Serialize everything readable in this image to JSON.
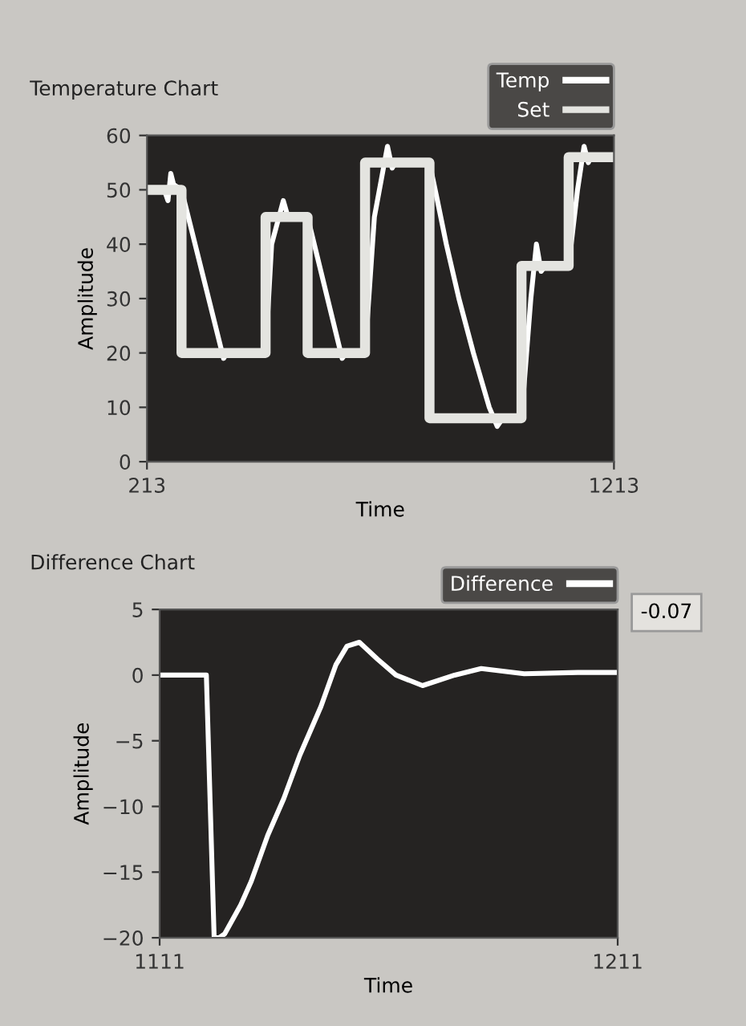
{
  "chart_data": [
    {
      "type": "line",
      "title": "Temperature Chart",
      "xlabel": "Time",
      "ylabel": "Amplitude",
      "xlim": [
        213,
        1213
      ],
      "ylim": [
        0,
        60
      ],
      "xticks": [
        213,
        1213
      ],
      "yticks": [
        0,
        10,
        20,
        30,
        40,
        50,
        60
      ],
      "grid": false,
      "legend": "top right",
      "series": [
        {
          "name": "Temp",
          "color": "#ffffff",
          "x": [
            213,
            250,
            258,
            264,
            270,
            287,
            377,
            385,
            467,
            480,
            505,
            515,
            522,
            557,
            631,
            640,
            680,
            700,
            728,
            738,
            745,
            818,
            835,
            854,
            881,
            912,
            946,
            963,
            975,
            1015,
            1035,
            1047,
            1057,
            1066,
            1116,
            1135,
            1149,
            1158,
            1164,
            1213
          ],
          "values": [
            50,
            50,
            48,
            53,
            51,
            50,
            19,
            20,
            20,
            40,
            48,
            45,
            45,
            45,
            19,
            20,
            20,
            45,
            58,
            54,
            55,
            55,
            48,
            40,
            30,
            20,
            10,
            6.5,
            8,
            8,
            30,
            40,
            35,
            36,
            36,
            50,
            58,
            55,
            56,
            56
          ]
        },
        {
          "name": "Set",
          "color": "#e4e4e0",
          "type": "step",
          "x": [
            213,
            287,
            467,
            557,
            680,
            818,
            1015,
            1116,
            1213
          ],
          "values": [
            50,
            20,
            45,
            20,
            55,
            8,
            36,
            56,
            56
          ]
        }
      ]
    },
    {
      "type": "line",
      "title": "Difference Chart",
      "xlabel": "Time",
      "ylabel": "Amplitude",
      "xlim": [
        1111,
        1211
      ],
      "ylim": [
        -20,
        5
      ],
      "xticks": [
        1111,
        1211
      ],
      "yticks": [
        -20,
        -15,
        -10,
        -5,
        0,
        5
      ],
      "grid": false,
      "legend": "top right",
      "annotations": [
        "-0.07"
      ],
      "series": [
        {
          "name": "Difference",
          "color": "#ffffff",
          "x": [
            1111,
            1121.2,
            1122.9,
            1124,
            1125.2,
            1128.7,
            1131,
            1134.6,
            1138.1,
            1141.6,
            1146.2,
            1149.5,
            1151.9,
            1154.6,
            1158.6,
            1162.6,
            1168.4,
            1175.4,
            1181.2,
            1190.6,
            1202.3,
            1211
          ],
          "values": [
            0,
            0,
            -20,
            -20,
            -19.7,
            -17.5,
            -15.7,
            -12.2,
            -9.4,
            -6.1,
            -2.4,
            0.8,
            2.2,
            2.5,
            1.2,
            0,
            -0.8,
            0,
            0.5,
            0.1,
            0.2,
            0.2
          ]
        }
      ]
    }
  ]
}
